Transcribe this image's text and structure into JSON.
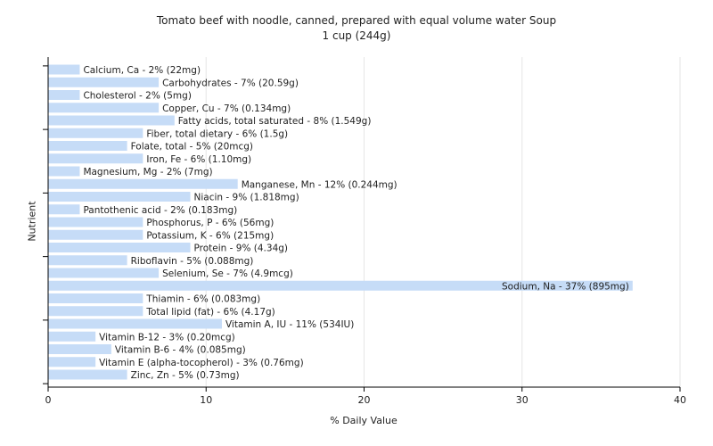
{
  "chart_data": {
    "type": "bar",
    "orientation": "horizontal",
    "title": "Tomato beef with noodle, canned, prepared with equal volume water Soup",
    "subtitle": "1 cup (244g)",
    "xlabel": "% Daily Value",
    "ylabel": "Nutrient",
    "xlim": [
      0,
      40
    ],
    "xticks": [
      0,
      10,
      20,
      30,
      40
    ],
    "grid": true,
    "bar_color": "#c6dcf7",
    "categories": [
      "Calcium, Ca",
      "Carbohydrates",
      "Cholesterol",
      "Copper, Cu",
      "Fatty acids, total saturated",
      "Fiber, total dietary",
      "Folate, total",
      "Iron, Fe",
      "Magnesium, Mg",
      "Manganese, Mn",
      "Niacin",
      "Pantothenic acid",
      "Phosphorus, P",
      "Potassium, K",
      "Protein",
      "Riboflavin",
      "Selenium, Se",
      "Sodium, Na",
      "Thiamin",
      "Total lipid (fat)",
      "Vitamin A, IU",
      "Vitamin B-12",
      "Vitamin B-6",
      "Vitamin E (alpha-tocopherol)",
      "Zinc, Zn"
    ],
    "values": [
      2,
      7,
      2,
      7,
      8,
      6,
      5,
      6,
      2,
      12,
      9,
      2,
      6,
      6,
      9,
      5,
      7,
      37,
      6,
      6,
      11,
      3,
      4,
      3,
      5
    ],
    "labels": [
      "Calcium, Ca - 2% (22mg)",
      "Carbohydrates - 7% (20.59g)",
      "Cholesterol - 2% (5mg)",
      "Copper, Cu - 7% (0.134mg)",
      "Fatty acids, total saturated - 8% (1.549g)",
      "Fiber, total dietary - 6% (1.5g)",
      "Folate, total - 5% (20mcg)",
      "Iron, Fe - 6% (1.10mg)",
      "Magnesium, Mg - 2% (7mg)",
      "Manganese, Mn - 12% (0.244mg)",
      "Niacin - 9% (1.818mg)",
      "Pantothenic acid - 2% (0.183mg)",
      "Phosphorus, P - 6% (56mg)",
      "Potassium, K - 6% (215mg)",
      "Protein - 9% (4.34g)",
      "Riboflavin - 5% (0.088mg)",
      "Selenium, Se - 7% (4.9mcg)",
      "Sodium, Na - 37% (895mg)",
      "Thiamin - 6% (0.083mg)",
      "Total lipid (fat) - 6% (4.17g)",
      "Vitamin A, IU - 11% (534IU)",
      "Vitamin B-12 - 3% (0.20mcg)",
      "Vitamin B-6 - 4% (0.085mg)",
      "Vitamin E (alpha-tocopherol) - 3% (0.76mg)",
      "Zinc, Zn - 5% (0.73mg)"
    ]
  }
}
